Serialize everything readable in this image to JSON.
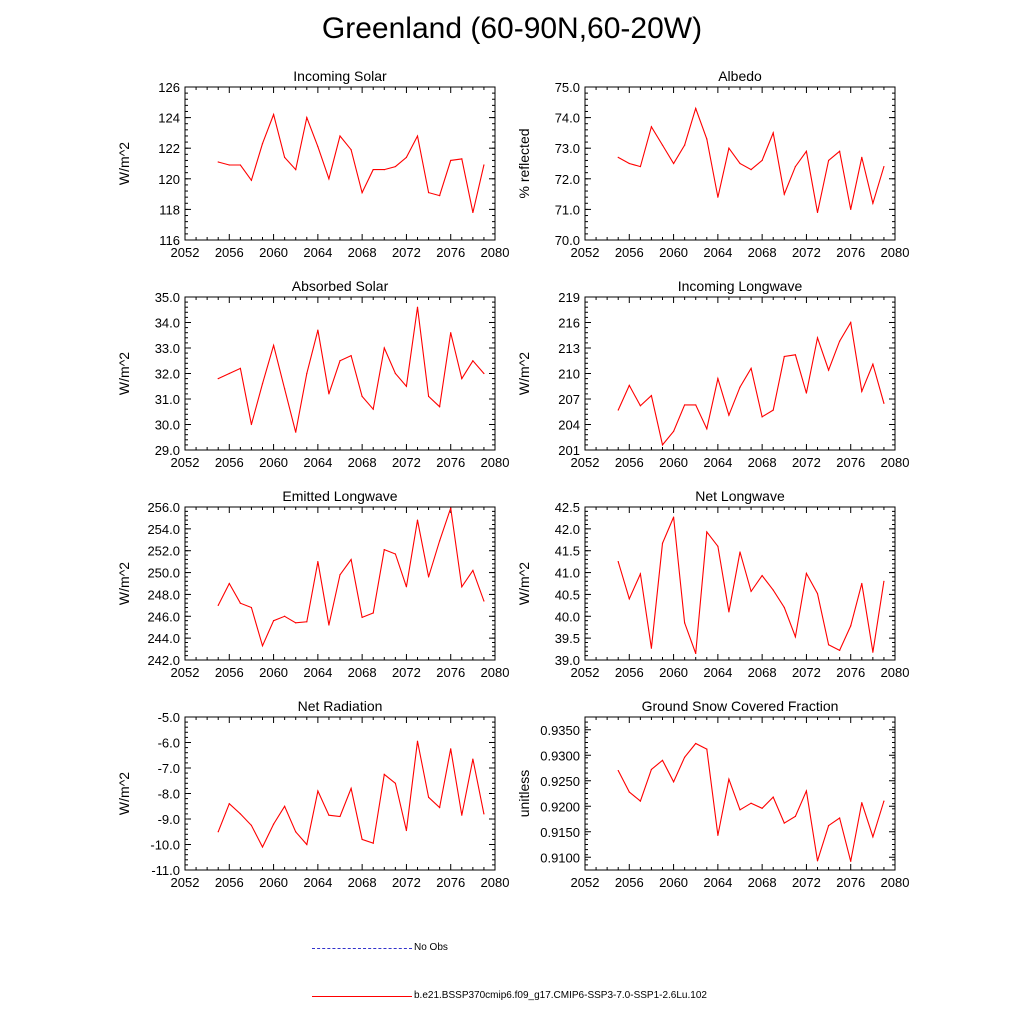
{
  "page": {
    "title": "Greenland (60-90N,60-20W)"
  },
  "legend": [
    {
      "label": "No Obs",
      "color": "#3333cc",
      "style": "dashed"
    },
    {
      "label": "b.e21.BSSP370cmip6.f09_g17.CMIP6-SSP3-7.0-SSP1-2.6Lu.102",
      "color": "#ff0000",
      "style": "solid"
    }
  ],
  "series_color": "#ff0000",
  "chart_data": [
    {
      "type": "line",
      "title": "Incoming Solar",
      "ylabel": "W/m^2",
      "xlim": [
        2052,
        2080
      ],
      "ylim": [
        116,
        126
      ],
      "xticks": [
        "2052",
        "2056",
        "2060",
        "2064",
        "2068",
        "2072",
        "2076",
        "2080"
      ],
      "yticks": [
        "116",
        "118",
        "120",
        "122",
        "124",
        "126"
      ],
      "x": [
        2055,
        2056,
        2057,
        2058,
        2059,
        2060,
        2061,
        2062,
        2063,
        2064,
        2065,
        2066,
        2067,
        2068,
        2069,
        2070,
        2071,
        2072,
        2073,
        2074,
        2075,
        2076,
        2077,
        2078,
        2079
      ],
      "values": [
        121.1,
        120.9,
        120.9,
        119.9,
        122.3,
        124.2,
        121.4,
        120.6,
        124.0,
        122.1,
        120.0,
        122.8,
        121.9,
        119.1,
        120.6,
        120.6,
        120.8,
        121.4,
        122.8,
        119.1,
        118.9,
        121.2,
        121.3,
        117.8,
        120.9
      ]
    },
    {
      "type": "line",
      "title": "Albedo",
      "ylabel": "% reflected",
      "xlim": [
        2052,
        2080
      ],
      "ylim": [
        70.0,
        75.0
      ],
      "xticks": [
        "2052",
        "2056",
        "2060",
        "2064",
        "2068",
        "2072",
        "2076",
        "2080"
      ],
      "yticks": [
        "70.0",
        "71.0",
        "72.0",
        "73.0",
        "74.0",
        "75.0"
      ],
      "x": [
        2055,
        2056,
        2057,
        2058,
        2059,
        2060,
        2061,
        2062,
        2063,
        2064,
        2065,
        2066,
        2067,
        2068,
        2069,
        2070,
        2071,
        2072,
        2073,
        2074,
        2075,
        2076,
        2077,
        2078,
        2079
      ],
      "values": [
        72.7,
        72.5,
        72.4,
        73.7,
        73.1,
        72.5,
        73.1,
        74.3,
        73.3,
        71.4,
        73.0,
        72.5,
        72.3,
        72.6,
        73.5,
        71.5,
        72.4,
        72.9,
        70.9,
        72.6,
        72.9,
        71.0,
        72.7,
        71.2,
        72.4
      ]
    },
    {
      "type": "line",
      "title": "Absorbed Solar",
      "ylabel": "W/m^2",
      "xlim": [
        2052,
        2080
      ],
      "ylim": [
        29.0,
        35.0
      ],
      "xticks": [
        "2052",
        "2056",
        "2060",
        "2064",
        "2068",
        "2072",
        "2076",
        "2080"
      ],
      "yticks": [
        "29.0",
        "30.0",
        "31.0",
        "32.0",
        "33.0",
        "34.0",
        "35.0"
      ],
      "x": [
        2055,
        2056,
        2057,
        2058,
        2059,
        2060,
        2061,
        2062,
        2063,
        2064,
        2065,
        2066,
        2067,
        2068,
        2069,
        2070,
        2071,
        2072,
        2073,
        2074,
        2075,
        2076,
        2077,
        2078,
        2079
      ],
      "values": [
        31.8,
        32.0,
        32.2,
        30.0,
        31.6,
        33.1,
        31.4,
        29.7,
        32.0,
        33.7,
        31.2,
        32.5,
        32.7,
        31.1,
        30.6,
        33.0,
        32.0,
        31.5,
        34.6,
        31.1,
        30.7,
        33.6,
        31.8,
        32.5,
        32.0
      ]
    },
    {
      "type": "line",
      "title": "Incoming Longwave",
      "ylabel": "W/m^2",
      "xlim": [
        2052,
        2080
      ],
      "ylim": [
        201,
        219
      ],
      "xticks": [
        "2052",
        "2056",
        "2060",
        "2064",
        "2068",
        "2072",
        "2076",
        "2080"
      ],
      "yticks": [
        "201",
        "204",
        "207",
        "210",
        "213",
        "216",
        "219"
      ],
      "x": [
        2055,
        2056,
        2057,
        2058,
        2059,
        2060,
        2061,
        2062,
        2063,
        2064,
        2065,
        2066,
        2067,
        2068,
        2069,
        2070,
        2071,
        2072,
        2073,
        2074,
        2075,
        2076,
        2077,
        2078,
        2079
      ],
      "values": [
        205.7,
        208.6,
        206.2,
        207.4,
        201.6,
        203.2,
        206.3,
        206.3,
        203.5,
        209.4,
        205.1,
        208.4,
        210.6,
        204.9,
        205.7,
        212.0,
        212.2,
        207.7,
        214.2,
        210.4,
        213.8,
        216.0,
        207.9,
        211.1,
        206.5
      ]
    },
    {
      "type": "line",
      "title": "Emitted Longwave",
      "ylabel": "W/m^2",
      "xlim": [
        2052,
        2080
      ],
      "ylim": [
        242.0,
        256.0
      ],
      "xticks": [
        "2052",
        "2056",
        "2060",
        "2064",
        "2068",
        "2072",
        "2076",
        "2080"
      ],
      "yticks": [
        "242.0",
        "244.0",
        "246.0",
        "248.0",
        "250.0",
        "252.0",
        "254.0",
        "256.0"
      ],
      "x": [
        2055,
        2056,
        2057,
        2058,
        2059,
        2060,
        2061,
        2062,
        2063,
        2064,
        2065,
        2066,
        2067,
        2068,
        2069,
        2070,
        2071,
        2072,
        2073,
        2074,
        2075,
        2076,
        2077,
        2078,
        2079
      ],
      "values": [
        247.0,
        249.0,
        247.2,
        246.8,
        243.3,
        245.6,
        246.0,
        245.4,
        245.5,
        251.0,
        245.2,
        249.8,
        251.2,
        245.9,
        246.3,
        252.1,
        251.7,
        248.7,
        254.8,
        249.6,
        252.9,
        255.9,
        248.7,
        250.2,
        247.4
      ]
    },
    {
      "type": "line",
      "title": "Net Longwave",
      "ylabel": "W/m^2",
      "xlim": [
        2052,
        2080
      ],
      "ylim": [
        39.0,
        42.5
      ],
      "xticks": [
        "2052",
        "2056",
        "2060",
        "2064",
        "2068",
        "2072",
        "2076",
        "2080"
      ],
      "yticks": [
        "39.0",
        "39.5",
        "40.0",
        "40.5",
        "41.0",
        "41.5",
        "42.0",
        "42.5"
      ],
      "x": [
        2055,
        2056,
        2057,
        2058,
        2059,
        2060,
        2061,
        2062,
        2063,
        2064,
        2065,
        2066,
        2067,
        2068,
        2069,
        2070,
        2071,
        2072,
        2073,
        2074,
        2075,
        2076,
        2077,
        2078,
        2079
      ],
      "values": [
        41.25,
        40.4,
        40.97,
        39.27,
        41.67,
        42.27,
        39.85,
        39.15,
        41.93,
        41.6,
        40.1,
        41.47,
        40.57,
        40.93,
        40.6,
        40.2,
        39.53,
        40.98,
        40.52,
        39.35,
        39.22,
        39.78,
        40.75,
        39.18,
        40.8
      ]
    },
    {
      "type": "line",
      "title": "Net Radiation",
      "ylabel": "W/m^2",
      "xlim": [
        2052,
        2080
      ],
      "ylim": [
        -11.0,
        -5.0
      ],
      "xticks": [
        "2052",
        "2056",
        "2060",
        "2064",
        "2068",
        "2072",
        "2076",
        "2080"
      ],
      "yticks": [
        "-11.0",
        "-10.0",
        "-9.0",
        "-8.0",
        "-7.0",
        "-6.0",
        "-5.0"
      ],
      "x": [
        2055,
        2056,
        2057,
        2058,
        2059,
        2060,
        2061,
        2062,
        2063,
        2064,
        2065,
        2066,
        2067,
        2068,
        2069,
        2070,
        2071,
        2072,
        2073,
        2074,
        2075,
        2076,
        2077,
        2078,
        2079
      ],
      "values": [
        -9.5,
        -8.4,
        -8.8,
        -9.25,
        -10.1,
        -9.2,
        -8.5,
        -9.5,
        -10.0,
        -7.9,
        -8.85,
        -8.9,
        -7.8,
        -9.8,
        -9.95,
        -7.25,
        -7.6,
        -9.45,
        -5.95,
        -8.15,
        -8.55,
        -6.25,
        -8.85,
        -6.65,
        -8.8
      ]
    },
    {
      "type": "line",
      "title": "Ground Snow Covered Fraction",
      "ylabel": "unitless",
      "xlim": [
        2052,
        2080
      ],
      "ylim": [
        0.9075,
        0.9375
      ],
      "xticks": [
        "2052",
        "2056",
        "2060",
        "2064",
        "2068",
        "2072",
        "2076",
        "2080"
      ],
      "yticks": [
        "0.9100",
        "0.9150",
        "0.9200",
        "0.9250",
        "0.9300",
        "0.9350"
      ],
      "x": [
        2055,
        2056,
        2057,
        2058,
        2059,
        2060,
        2061,
        2062,
        2063,
        2064,
        2065,
        2066,
        2067,
        2068,
        2069,
        2070,
        2071,
        2072,
        2073,
        2074,
        2075,
        2076,
        2077,
        2078,
        2079
      ],
      "values": [
        0.927,
        0.9228,
        0.921,
        0.9272,
        0.929,
        0.9248,
        0.9296,
        0.9323,
        0.9312,
        0.9143,
        0.9253,
        0.9193,
        0.9206,
        0.9196,
        0.9218,
        0.9167,
        0.918,
        0.923,
        0.9093,
        0.9162,
        0.9177,
        0.9092,
        0.9207,
        0.914,
        0.921
      ]
    }
  ]
}
